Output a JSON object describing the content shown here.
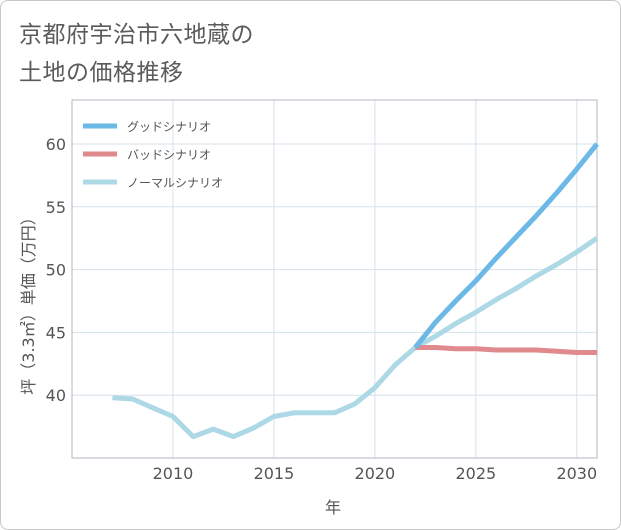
{
  "page": {
    "title_line1": "京都府宇治市六地蔵の",
    "title_line2": "土地の価格推移"
  },
  "chart_data": {
    "type": "line",
    "xlabel": "年",
    "ylabel": "坪（3.3㎡）単価（万円）",
    "xlim": [
      2005,
      2031
    ],
    "ylim": [
      35,
      63.5
    ],
    "xticks": [
      2010,
      2015,
      2020,
      2025,
      2030
    ],
    "yticks": [
      40,
      45,
      50,
      55,
      60
    ],
    "legend_position": "top-left",
    "series": [
      {
        "name": "ノーマルシナリオ",
        "color": "#add8e6",
        "x": [
          2007,
          2008,
          2009,
          2010,
          2011,
          2012,
          2013,
          2014,
          2015,
          2016,
          2017,
          2018,
          2019,
          2020,
          2021,
          2022,
          2023,
          2024,
          2025,
          2026,
          2027,
          2028,
          2029,
          2030,
          2031
        ],
        "values": [
          39.8,
          39.7,
          39.0,
          38.3,
          36.7,
          37.3,
          36.7,
          37.4,
          38.3,
          38.6,
          38.6,
          38.6,
          39.3,
          40.6,
          42.4,
          43.8,
          44.7,
          45.7,
          46.6,
          47.6,
          48.5,
          49.5,
          50.4,
          51.4,
          52.5
        ]
      },
      {
        "name": "バッドシナリオ",
        "color": "#e08a8e",
        "x": [
          2022,
          2023,
          2024,
          2025,
          2026,
          2027,
          2028,
          2029,
          2030,
          2031
        ],
        "values": [
          43.8,
          43.8,
          43.7,
          43.7,
          43.6,
          43.6,
          43.6,
          43.5,
          43.4,
          43.4
        ]
      },
      {
        "name": "グッドシナリオ",
        "color": "#6cb8e6",
        "x": [
          2022,
          2023,
          2024,
          2025,
          2026,
          2027,
          2028,
          2029,
          2030,
          2031
        ],
        "values": [
          43.8,
          45.8,
          47.5,
          49.1,
          50.9,
          52.6,
          54.3,
          56.1,
          58.0,
          60.0
        ]
      }
    ],
    "legend": [
      {
        "label": "グッドシナリオ",
        "color": "#6cb8e6"
      },
      {
        "label": "バッドシナリオ",
        "color": "#e08a8e"
      },
      {
        "label": "ノーマルシナリオ",
        "color": "#add8e6"
      }
    ]
  }
}
